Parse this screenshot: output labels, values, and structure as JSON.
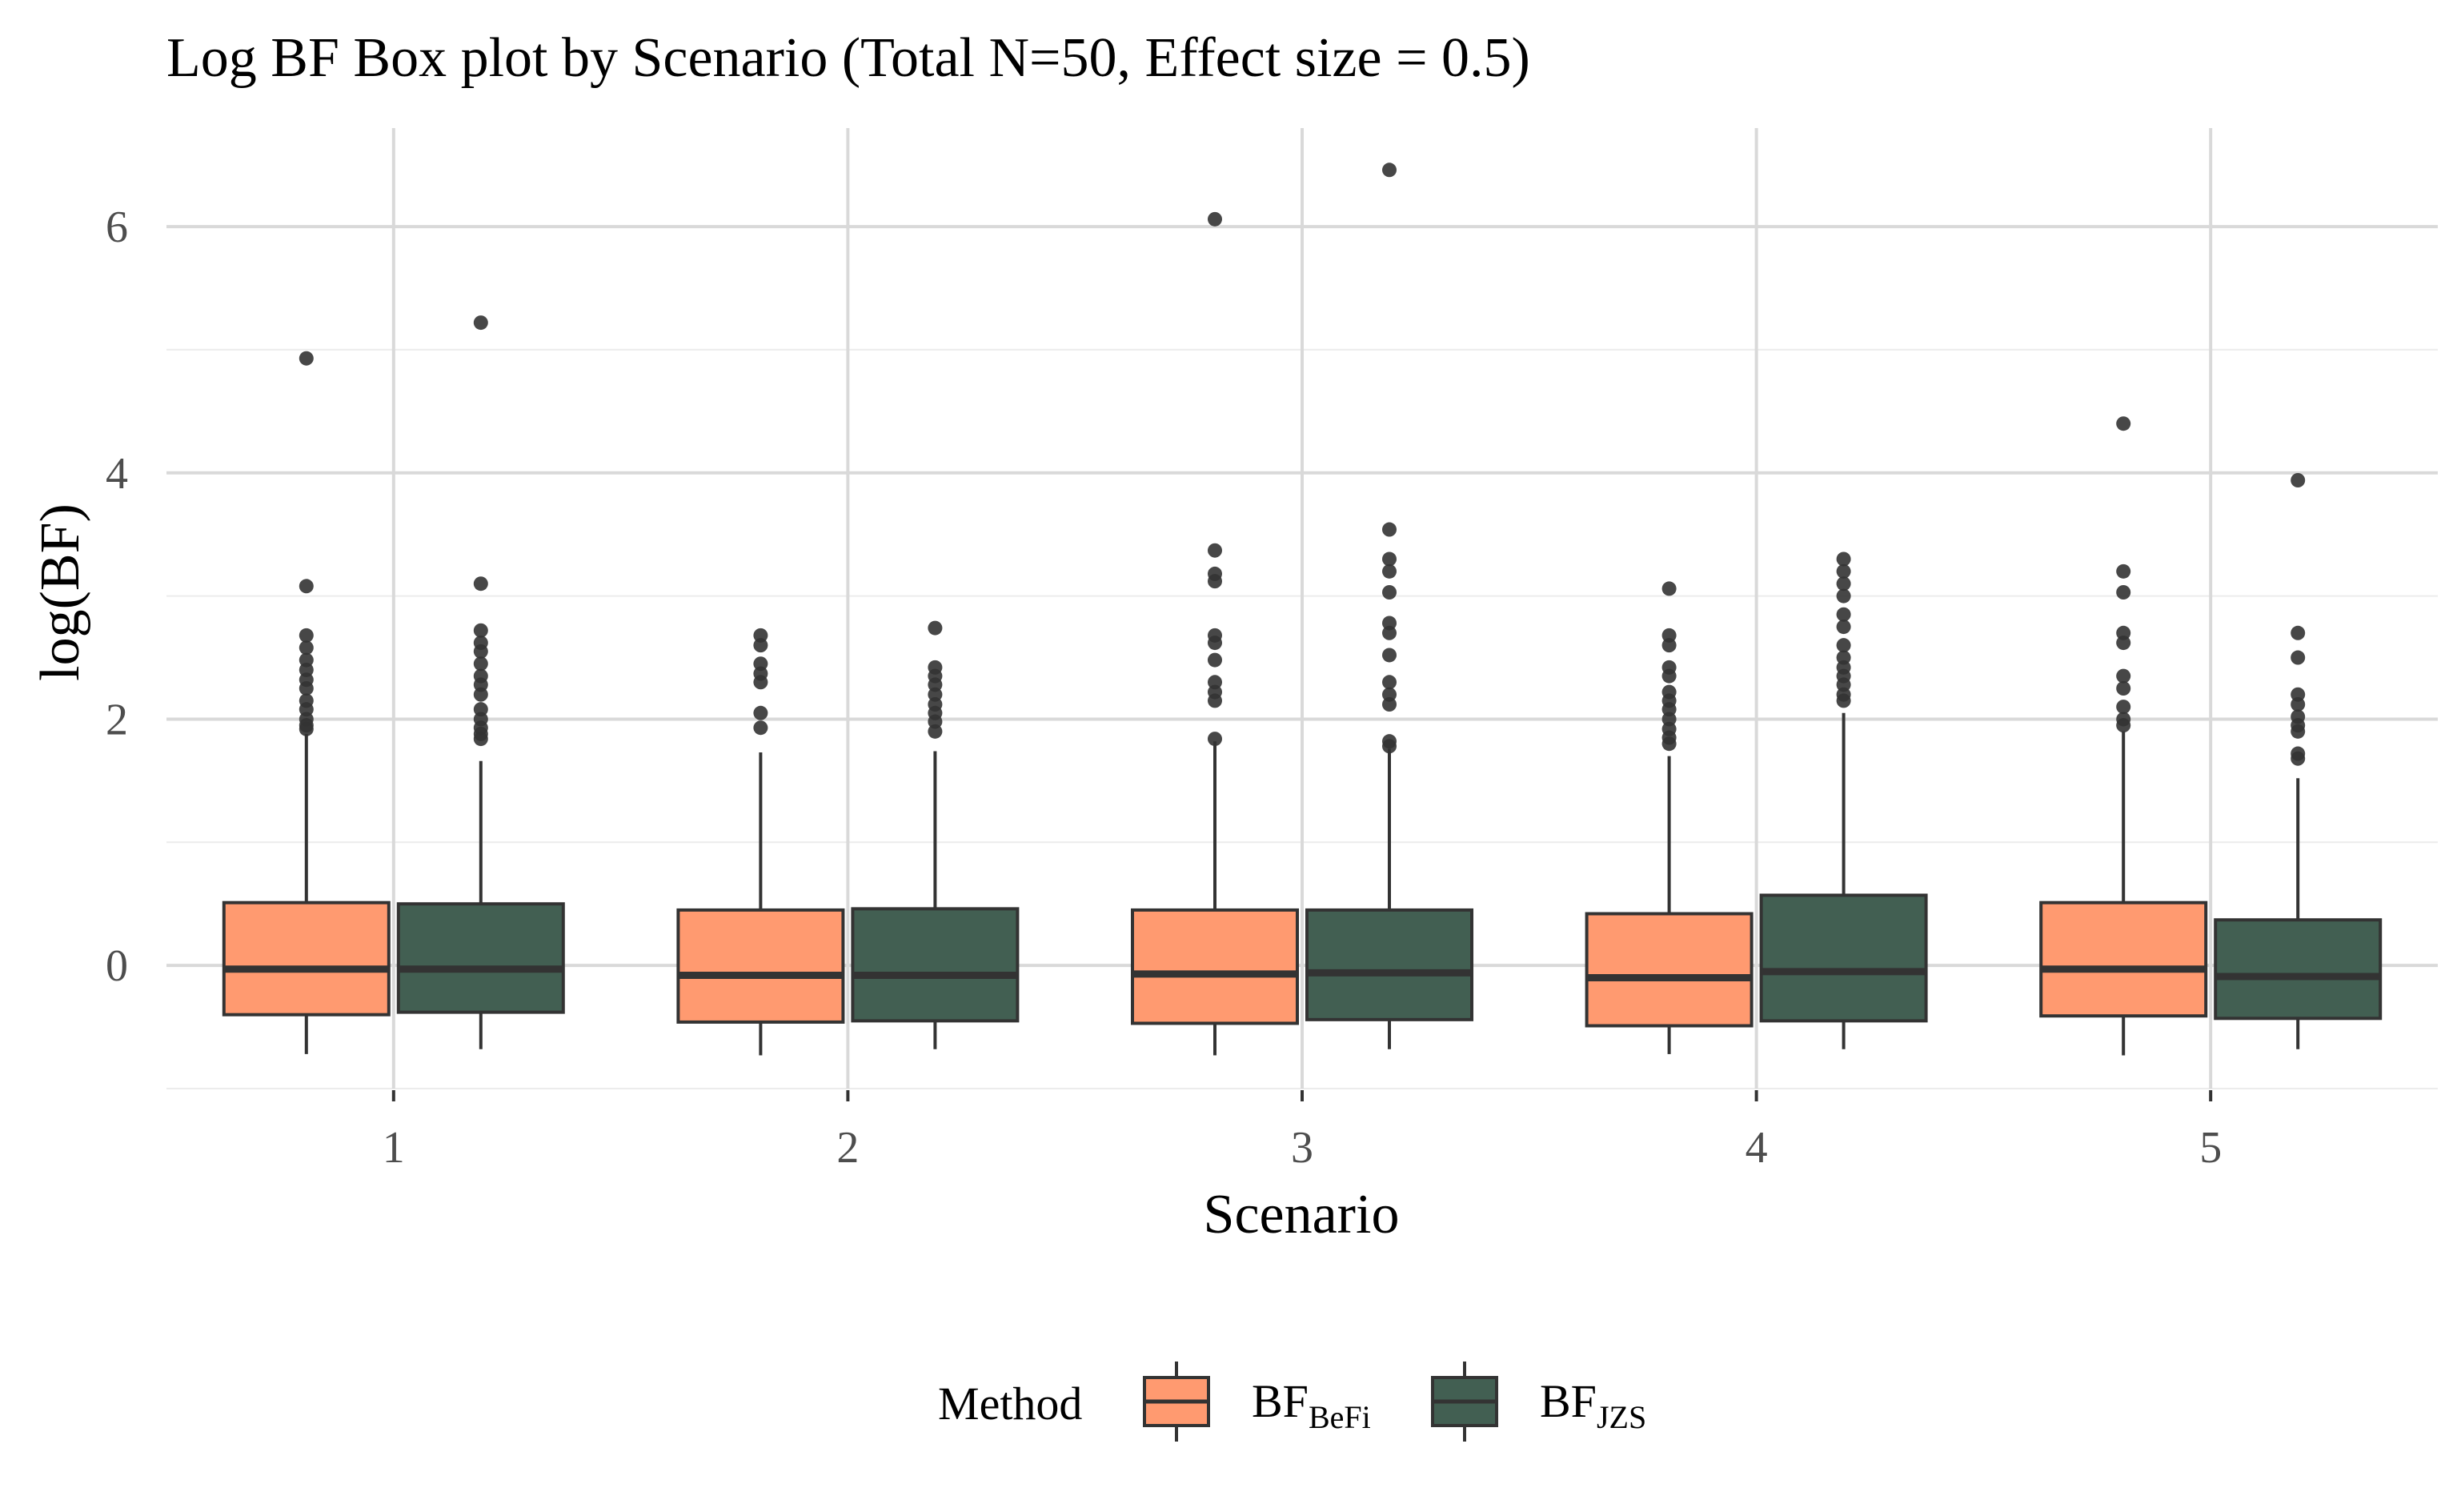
{
  "chart_data": {
    "type": "box",
    "title": "Log BF Box plot by Scenario (Total N=50, Effect size = 0.5)",
    "xlabel": "Scenario",
    "ylabel": "log(BF)",
    "categories": [
      "1",
      "2",
      "3",
      "4",
      "5"
    ],
    "yticks": [
      "0",
      "2",
      "4",
      "6"
    ],
    "ylim": [
      -1.0,
      6.8
    ],
    "grid": true,
    "legend": {
      "title": "Method",
      "position": "bottom",
      "entries": [
        {
          "key": "befi",
          "base": "BF",
          "sub": "BeFi",
          "color": "#FF9A70"
        },
        {
          "key": "jzs",
          "base": "BF",
          "sub": "JZS",
          "color": "#425F52"
        }
      ]
    },
    "series": [
      {
        "key": "befi",
        "boxes": [
          {
            "lower": -0.72,
            "q1": -0.4,
            "median": -0.03,
            "q3": 0.51,
            "upper": 1.88,
            "outliers": [
              1.92,
              1.95,
              2.0,
              2.08,
              2.15,
              2.25,
              2.32,
              2.4,
              2.48,
              2.58,
              2.68,
              3.08,
              4.93
            ]
          },
          {
            "lower": -0.73,
            "q1": -0.46,
            "median": -0.08,
            "q3": 0.45,
            "upper": 1.73,
            "outliers": [
              1.93,
              2.05,
              2.3,
              2.37,
              2.45,
              2.6,
              2.68
            ]
          },
          {
            "lower": -0.73,
            "q1": -0.47,
            "median": -0.07,
            "q3": 0.45,
            "upper": 1.82,
            "outliers": [
              1.84,
              2.15,
              2.22,
              2.3,
              2.48,
              2.62,
              2.68,
              3.12,
              3.18,
              3.37,
              6.06
            ]
          },
          {
            "lower": -0.72,
            "q1": -0.49,
            "median": -0.1,
            "q3": 0.42,
            "upper": 1.7,
            "outliers": [
              1.8,
              1.85,
              1.92,
              2.0,
              2.08,
              2.15,
              2.22,
              2.35,
              2.42,
              2.6,
              2.68,
              3.06
            ]
          },
          {
            "lower": -0.73,
            "q1": -0.41,
            "median": -0.03,
            "q3": 0.51,
            "upper": 1.9,
            "outliers": [
              1.95,
              2.0,
              2.1,
              2.25,
              2.35,
              2.62,
              2.7,
              3.03,
              3.2,
              4.4
            ]
          }
        ]
      },
      {
        "key": "jzs",
        "boxes": [
          {
            "lower": -0.68,
            "q1": -0.38,
            "median": -0.03,
            "q3": 0.5,
            "upper": 1.66,
            "outliers": [
              1.84,
              1.88,
              1.93,
              2.0,
              2.08,
              2.2,
              2.28,
              2.35,
              2.45,
              2.55,
              2.62,
              2.72,
              3.1,
              5.22
            ]
          },
          {
            "lower": -0.68,
            "q1": -0.45,
            "median": -0.08,
            "q3": 0.46,
            "upper": 1.74,
            "outliers": [
              1.9,
              1.98,
              2.05,
              2.12,
              2.2,
              2.28,
              2.35,
              2.42,
              2.74
            ]
          },
          {
            "lower": -0.68,
            "q1": -0.44,
            "median": -0.06,
            "q3": 0.45,
            "upper": 1.76,
            "outliers": [
              1.78,
              1.82,
              2.12,
              2.2,
              2.3,
              2.52,
              2.7,
              2.78,
              3.03,
              3.2,
              3.3,
              3.54,
              6.46
            ]
          },
          {
            "lower": -0.68,
            "q1": -0.45,
            "median": -0.05,
            "q3": 0.57,
            "upper": 2.05,
            "outliers": [
              2.15,
              2.2,
              2.28,
              2.35,
              2.42,
              2.5,
              2.6,
              2.75,
              2.85,
              3.0,
              3.1,
              3.2,
              3.3
            ]
          },
          {
            "lower": -0.68,
            "q1": -0.43,
            "median": -0.09,
            "q3": 0.37,
            "upper": 1.52,
            "outliers": [
              1.68,
              1.72,
              1.9,
              1.95,
              2.02,
              2.12,
              2.2,
              2.5,
              2.7,
              3.94
            ]
          }
        ]
      }
    ]
  }
}
